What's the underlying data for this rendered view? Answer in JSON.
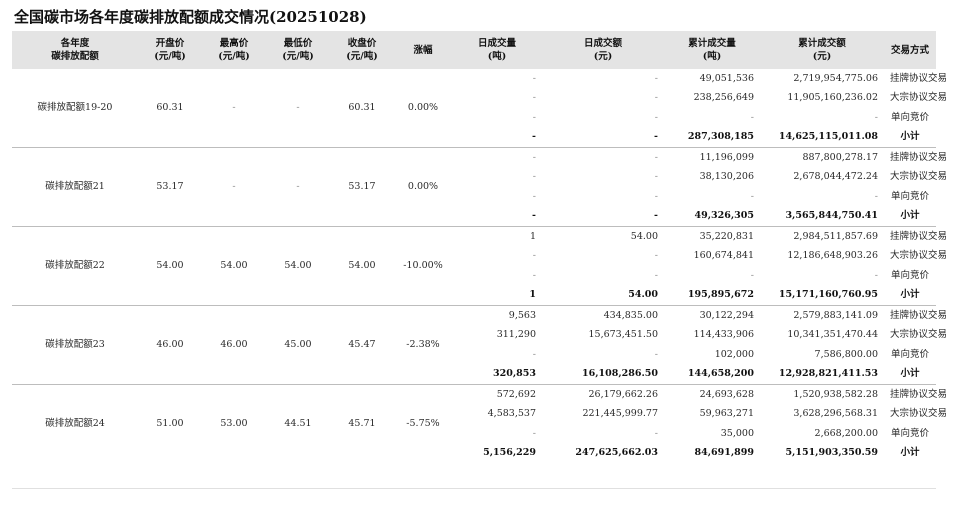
{
  "title": "全国碳市场各年度碳排放配额成交情况(20251028)",
  "headers": {
    "product": [
      "各年度",
      "碳排放配额"
    ],
    "open": [
      "开盘价",
      "(元/吨)"
    ],
    "high": [
      "最高价",
      "(元/吨)"
    ],
    "low": [
      "最低价",
      "(元/吨)"
    ],
    "close": [
      "收盘价",
      "(元/吨)"
    ],
    "change": [
      "涨幅"
    ],
    "day_volume": [
      "日成交量",
      "(吨)"
    ],
    "day_amount": [
      "日成交额",
      "(元)"
    ],
    "cum_volume": [
      "累计成交量",
      "(吨)"
    ],
    "cum_amount": [
      "累计成交额",
      "(元)"
    ],
    "method": [
      "交易方式"
    ]
  },
  "groups": [
    {
      "name": "碳排放配额19-20",
      "open": "60.31",
      "high": "-",
      "low": "-",
      "close": "60.31",
      "change": "0.00%",
      "rows": [
        {
          "day_volume": "-",
          "day_amount": "-",
          "cum_volume": "49,051,536",
          "cum_amount": "2,719,954,775.06",
          "method": "挂牌协议交易"
        },
        {
          "day_volume": "-",
          "day_amount": "-",
          "cum_volume": "238,256,649",
          "cum_amount": "11,905,160,236.02",
          "method": "大宗协议交易"
        },
        {
          "day_volume": "-",
          "day_amount": "-",
          "cum_volume": "-",
          "cum_amount": "-",
          "method": "单向竞价"
        },
        {
          "day_volume": "-",
          "day_amount": "-",
          "cum_volume": "287,308,185",
          "cum_amount": "14,625,115,011.08",
          "method": "小计"
        }
      ]
    },
    {
      "name": "碳排放配额21",
      "open": "53.17",
      "high": "-",
      "low": "-",
      "close": "53.17",
      "change": "0.00%",
      "rows": [
        {
          "day_volume": "-",
          "day_amount": "-",
          "cum_volume": "11,196,099",
          "cum_amount": "887,800,278.17",
          "method": "挂牌协议交易"
        },
        {
          "day_volume": "-",
          "day_amount": "-",
          "cum_volume": "38,130,206",
          "cum_amount": "2,678,044,472.24",
          "method": "大宗协议交易"
        },
        {
          "day_volume": "-",
          "day_amount": "-",
          "cum_volume": "-",
          "cum_amount": "-",
          "method": "单向竞价"
        },
        {
          "day_volume": "-",
          "day_amount": "-",
          "cum_volume": "49,326,305",
          "cum_amount": "3,565,844,750.41",
          "method": "小计"
        }
      ]
    },
    {
      "name": "碳排放配额22",
      "open": "54.00",
      "high": "54.00",
      "low": "54.00",
      "close": "54.00",
      "change": "-10.00%",
      "rows": [
        {
          "day_volume": "1",
          "day_amount": "54.00",
          "cum_volume": "35,220,831",
          "cum_amount": "2,984,511,857.69",
          "method": "挂牌协议交易"
        },
        {
          "day_volume": "-",
          "day_amount": "-",
          "cum_volume": "160,674,841",
          "cum_amount": "12,186,648,903.26",
          "method": "大宗协议交易"
        },
        {
          "day_volume": "-",
          "day_amount": "-",
          "cum_volume": "-",
          "cum_amount": "-",
          "method": "单向竞价"
        },
        {
          "day_volume": "1",
          "day_amount": "54.00",
          "cum_volume": "195,895,672",
          "cum_amount": "15,171,160,760.95",
          "method": "小计"
        }
      ]
    },
    {
      "name": "碳排放配额23",
      "open": "46.00",
      "high": "46.00",
      "low": "45.00",
      "close": "45.47",
      "change": "-2.38%",
      "rows": [
        {
          "day_volume": "9,563",
          "day_amount": "434,835.00",
          "cum_volume": "30,122,294",
          "cum_amount": "2,579,883,141.09",
          "method": "挂牌协议交易"
        },
        {
          "day_volume": "311,290",
          "day_amount": "15,673,451.50",
          "cum_volume": "114,433,906",
          "cum_amount": "10,341,351,470.44",
          "method": "大宗协议交易"
        },
        {
          "day_volume": "-",
          "day_amount": "-",
          "cum_volume": "102,000",
          "cum_amount": "7,586,800.00",
          "method": "单向竞价"
        },
        {
          "day_volume": "320,853",
          "day_amount": "16,108,286.50",
          "cum_volume": "144,658,200",
          "cum_amount": "12,928,821,411.53",
          "method": "小计"
        }
      ]
    },
    {
      "name": "碳排放配额24",
      "open": "51.00",
      "high": "53.00",
      "low": "44.51",
      "close": "45.71",
      "change": "-5.75%",
      "rows": [
        {
          "day_volume": "572,692",
          "day_amount": "26,179,662.26",
          "cum_volume": "24,693,628",
          "cum_amount": "1,520,938,582.28",
          "method": "挂牌协议交易"
        },
        {
          "day_volume": "4,583,537",
          "day_amount": "221,445,999.77",
          "cum_volume": "59,963,271",
          "cum_amount": "3,628,296,568.31",
          "method": "大宗协议交易"
        },
        {
          "day_volume": "-",
          "day_amount": "-",
          "cum_volume": "35,000",
          "cum_amount": "2,668,200.00",
          "method": "单向竞价"
        },
        {
          "day_volume": "5,156,229",
          "day_amount": "247,625,662.03",
          "cum_volume": "84,691,899",
          "cum_amount": "5,151,903,350.59",
          "method": "小计"
        }
      ]
    }
  ]
}
